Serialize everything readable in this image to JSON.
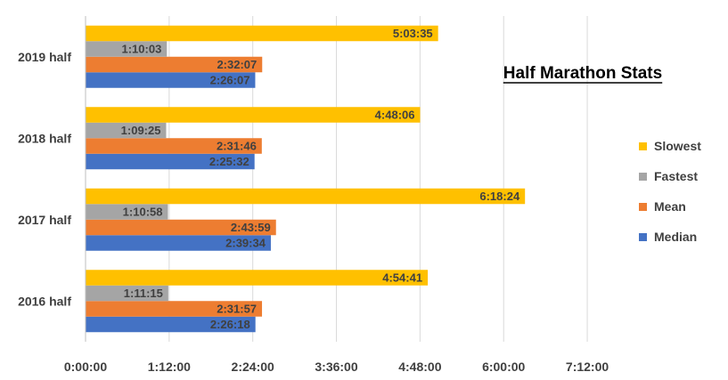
{
  "chart_data": {
    "type": "bar",
    "orientation": "horizontal",
    "title": "Half Marathon Stats",
    "categories": [
      "2016 half",
      "2017 half",
      "2018 half",
      "2019 half"
    ],
    "series": [
      {
        "name": "Median",
        "color": "#4472C4",
        "values": [
          "2:26:18",
          "2:39:34",
          "2:25:32",
          "2:26:07"
        ]
      },
      {
        "name": "Mean",
        "color": "#ED7D31",
        "values": [
          "2:31:57",
          "2:43:59",
          "2:31:46",
          "2:32:07"
        ]
      },
      {
        "name": "Fastest",
        "color": "#A5A5A5",
        "values": [
          "1:11:15",
          "1:10:58",
          "1:09:25",
          "1:10:03"
        ]
      },
      {
        "name": "Slowest",
        "color": "#FFC000",
        "values": [
          "4:54:41",
          "6:18:24",
          "4:48:06",
          "5:03:35"
        ]
      }
    ],
    "x_axis": {
      "ticks": [
        "0:00:00",
        "1:12:00",
        "2:24:00",
        "3:36:00",
        "4:48:00",
        "6:00:00",
        "7:12:00"
      ],
      "range": [
        "0:00:00",
        "7:12:00"
      ]
    },
    "grid": "vertical",
    "legend_position": "right",
    "legend_order": [
      "Slowest",
      "Fastest",
      "Mean",
      "Median"
    ]
  }
}
